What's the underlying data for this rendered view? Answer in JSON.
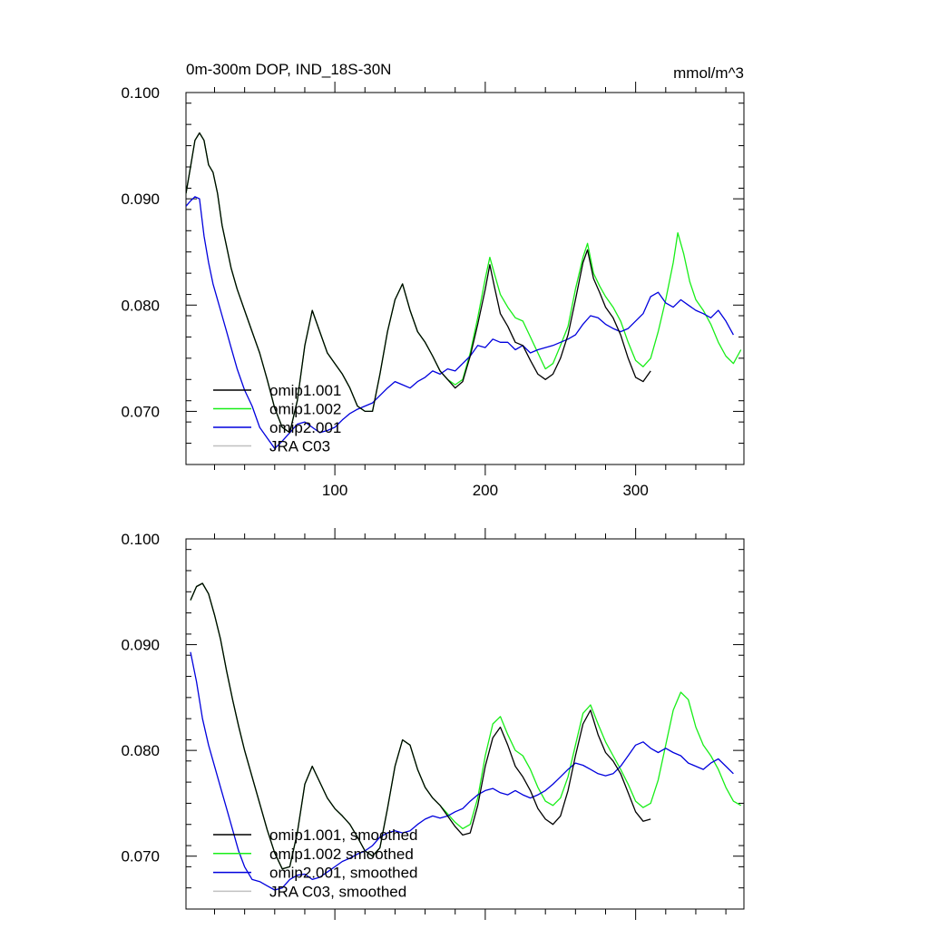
{
  "figure": {
    "title": "0m-300m DOP, IND_18S-30N",
    "units": "mmol/m^3"
  },
  "colors": {
    "omip1_001": "#000000",
    "omip1_002": "#18ee18",
    "omip2_001": "#0000dd",
    "jra_c03": "#c0c0c0"
  },
  "chart_data": [
    {
      "type": "line",
      "title": "0m-300m DOP, IND_18S-30N",
      "units": "mmol/m^3",
      "xlim": [
        1,
        372
      ],
      "ylim": [
        0.065,
        0.1
      ],
      "x_major_ticks": [
        100,
        200,
        300
      ],
      "x_tick_labels": [
        "100",
        "200",
        "300"
      ],
      "y_major_ticks": [
        0.07,
        0.08,
        0.09,
        0.1
      ],
      "y_tick_labels": [
        "0.070",
        "0.080",
        "0.090",
        "0.100"
      ],
      "legend_position": "bottom-left",
      "series": [
        {
          "name": "omip1.001",
          "color": "#000000",
          "x": [
            1,
            4,
            7,
            10,
            13,
            16,
            19,
            22,
            25,
            28,
            31,
            35,
            40,
            45,
            50,
            55,
            60,
            65,
            70,
            75,
            80,
            85,
            90,
            95,
            100,
            105,
            110,
            115,
            120,
            125,
            130,
            135,
            140,
            145,
            150,
            155,
            160,
            165,
            170,
            175,
            180,
            185,
            190,
            195,
            200,
            203,
            206,
            210,
            215,
            220,
            225,
            230,
            235,
            240,
            245,
            250,
            255,
            260,
            265,
            268,
            272,
            276,
            280,
            285,
            290,
            295,
            300,
            305,
            310
          ],
          "values": [
            0.0905,
            0.093,
            0.0955,
            0.0962,
            0.0955,
            0.0932,
            0.0925,
            0.0905,
            0.0875,
            0.0855,
            0.0835,
            0.0815,
            0.0795,
            0.0775,
            0.0755,
            0.073,
            0.0703,
            0.0685,
            0.068,
            0.071,
            0.0762,
            0.0795,
            0.0775,
            0.0755,
            0.0745,
            0.0735,
            0.0722,
            0.0705,
            0.07,
            0.07,
            0.0735,
            0.0775,
            0.0805,
            0.082,
            0.0795,
            0.0775,
            0.0765,
            0.0752,
            0.0738,
            0.073,
            0.0722,
            0.0728,
            0.0752,
            0.0782,
            0.0815,
            0.0838,
            0.0818,
            0.0792,
            0.078,
            0.0765,
            0.0762,
            0.0748,
            0.0735,
            0.073,
            0.0735,
            0.075,
            0.0772,
            0.0805,
            0.084,
            0.0852,
            0.0825,
            0.0812,
            0.0798,
            0.0788,
            0.0772,
            0.075,
            0.0732,
            0.0728,
            0.0738
          ]
        },
        {
          "name": "omip1.002",
          "color": "#18ee18",
          "x": [
            1,
            4,
            7,
            10,
            13,
            16,
            19,
            22,
            25,
            28,
            31,
            35,
            40,
            45,
            50,
            55,
            60,
            65,
            70,
            75,
            80,
            85,
            90,
            95,
            100,
            105,
            110,
            115,
            120,
            125,
            130,
            135,
            140,
            145,
            150,
            155,
            160,
            165,
            170,
            175,
            180,
            185,
            190,
            195,
            200,
            203,
            206,
            210,
            215,
            220,
            225,
            230,
            235,
            240,
            245,
            250,
            255,
            260,
            265,
            268,
            272,
            276,
            280,
            285,
            290,
            295,
            300,
            305,
            310,
            315,
            320,
            325,
            328,
            332,
            336,
            340,
            345,
            350,
            355,
            360,
            365,
            370
          ],
          "values": [
            0.0905,
            0.093,
            0.0955,
            0.0962,
            0.0955,
            0.0932,
            0.0925,
            0.0905,
            0.0875,
            0.0855,
            0.0835,
            0.0815,
            0.0795,
            0.0775,
            0.0755,
            0.073,
            0.0703,
            0.0685,
            0.068,
            0.071,
            0.0762,
            0.0795,
            0.0775,
            0.0755,
            0.0745,
            0.0735,
            0.0722,
            0.0705,
            0.07,
            0.07,
            0.0735,
            0.0775,
            0.0805,
            0.082,
            0.0795,
            0.0775,
            0.0765,
            0.0752,
            0.0738,
            0.073,
            0.0725,
            0.073,
            0.0755,
            0.0788,
            0.0825,
            0.0845,
            0.083,
            0.081,
            0.0798,
            0.0788,
            0.0785,
            0.077,
            0.0755,
            0.074,
            0.0745,
            0.0762,
            0.078,
            0.0815,
            0.0845,
            0.0858,
            0.083,
            0.0818,
            0.0808,
            0.0798,
            0.0785,
            0.0765,
            0.0748,
            0.0742,
            0.075,
            0.0775,
            0.0805,
            0.084,
            0.0868,
            0.0848,
            0.0822,
            0.0805,
            0.0795,
            0.0782,
            0.0765,
            0.0752,
            0.0745,
            0.0758
          ]
        },
        {
          "name": "omip2.001",
          "color": "#0000dd",
          "x": [
            1,
            4,
            7,
            10,
            13,
            16,
            19,
            22,
            25,
            28,
            31,
            35,
            40,
            45,
            50,
            55,
            60,
            65,
            70,
            75,
            80,
            85,
            90,
            95,
            100,
            105,
            110,
            115,
            120,
            125,
            130,
            135,
            140,
            145,
            150,
            155,
            160,
            165,
            170,
            175,
            180,
            185,
            190,
            195,
            200,
            205,
            210,
            215,
            220,
            225,
            230,
            235,
            240,
            245,
            250,
            255,
            260,
            265,
            270,
            275,
            280,
            285,
            290,
            295,
            300,
            305,
            310,
            315,
            320,
            325,
            330,
            335,
            340,
            345,
            350,
            355,
            360,
            365
          ],
          "values": [
            0.0893,
            0.0898,
            0.0902,
            0.09,
            0.0865,
            0.084,
            0.082,
            0.0805,
            0.079,
            0.0775,
            0.076,
            0.074,
            0.072,
            0.0705,
            0.0685,
            0.0675,
            0.0665,
            0.0672,
            0.068,
            0.0688,
            0.069,
            0.0685,
            0.068,
            0.0682,
            0.0685,
            0.0692,
            0.0698,
            0.0702,
            0.0705,
            0.0708,
            0.0715,
            0.0722,
            0.0728,
            0.0725,
            0.0722,
            0.0728,
            0.0732,
            0.0738,
            0.0735,
            0.074,
            0.0738,
            0.0745,
            0.0752,
            0.0762,
            0.076,
            0.0768,
            0.0765,
            0.0765,
            0.0758,
            0.0762,
            0.0755,
            0.0758,
            0.076,
            0.0762,
            0.0765,
            0.0768,
            0.0772,
            0.0782,
            0.079,
            0.0788,
            0.0782,
            0.0778,
            0.0775,
            0.0778,
            0.0785,
            0.0792,
            0.0808,
            0.0812,
            0.0802,
            0.0798,
            0.0805,
            0.08,
            0.0795,
            0.0792,
            0.0788,
            0.0795,
            0.0785,
            0.0772
          ]
        },
        {
          "name": "JRA C03",
          "color": "#c0c0c0",
          "x": [],
          "values": []
        }
      ]
    },
    {
      "type": "line",
      "title": "",
      "xlim": [
        1,
        372
      ],
      "ylim": [
        0.065,
        0.1
      ],
      "x_major_ticks": [
        100,
        200,
        300
      ],
      "x_tick_labels": [
        "",
        "",
        ""
      ],
      "y_major_ticks": [
        0.07,
        0.08,
        0.09,
        0.1
      ],
      "y_tick_labels": [
        "0.070",
        "0.080",
        "0.090",
        "0.100"
      ],
      "legend_position": "bottom-left",
      "series": [
        {
          "name": "omip1.001, smoothed",
          "color": "#000000",
          "x": [
            4,
            8,
            12,
            16,
            20,
            24,
            28,
            32,
            36,
            40,
            45,
            50,
            55,
            60,
            65,
            70,
            75,
            80,
            85,
            90,
            95,
            100,
            105,
            110,
            115,
            120,
            125,
            130,
            135,
            140,
            145,
            150,
            155,
            160,
            165,
            170,
            175,
            180,
            185,
            190,
            195,
            200,
            205,
            210,
            215,
            220,
            225,
            230,
            235,
            240,
            245,
            250,
            255,
            260,
            265,
            270,
            275,
            280,
            285,
            290,
            295,
            300,
            305,
            310
          ],
          "values": [
            0.0942,
            0.0955,
            0.0958,
            0.0948,
            0.0928,
            0.0905,
            0.0875,
            0.0848,
            0.0823,
            0.08,
            0.0775,
            0.075,
            0.0725,
            0.0703,
            0.0688,
            0.069,
            0.0722,
            0.0768,
            0.0785,
            0.077,
            0.0755,
            0.0745,
            0.0738,
            0.073,
            0.0718,
            0.0705,
            0.07,
            0.0708,
            0.0745,
            0.0785,
            0.081,
            0.0805,
            0.0782,
            0.0765,
            0.0755,
            0.0748,
            0.0738,
            0.0728,
            0.072,
            0.0722,
            0.0748,
            0.0785,
            0.0812,
            0.0822,
            0.0805,
            0.0785,
            0.0775,
            0.0762,
            0.0745,
            0.0735,
            0.073,
            0.0738,
            0.0762,
            0.0795,
            0.0825,
            0.0838,
            0.0815,
            0.0798,
            0.079,
            0.0778,
            0.076,
            0.0742,
            0.0733,
            0.0735
          ]
        },
        {
          "name": "omip1.002 smoothed",
          "color": "#18ee18",
          "x": [
            4,
            8,
            12,
            16,
            20,
            24,
            28,
            32,
            36,
            40,
            45,
            50,
            55,
            60,
            65,
            70,
            75,
            80,
            85,
            90,
            95,
            100,
            105,
            110,
            115,
            120,
            125,
            130,
            135,
            140,
            145,
            150,
            155,
            160,
            165,
            170,
            175,
            180,
            185,
            190,
            195,
            200,
            205,
            210,
            215,
            220,
            225,
            230,
            235,
            240,
            245,
            250,
            255,
            260,
            265,
            270,
            275,
            280,
            285,
            290,
            295,
            300,
            305,
            310,
            315,
            320,
            325,
            330,
            335,
            340,
            345,
            350,
            355,
            360,
            365,
            370
          ],
          "values": [
            0.0942,
            0.0955,
            0.0958,
            0.0948,
            0.0928,
            0.0905,
            0.0875,
            0.0848,
            0.0823,
            0.08,
            0.0775,
            0.075,
            0.0725,
            0.0703,
            0.0688,
            0.069,
            0.0722,
            0.0768,
            0.0785,
            0.077,
            0.0755,
            0.0745,
            0.0738,
            0.073,
            0.0718,
            0.0705,
            0.07,
            0.0708,
            0.0745,
            0.0785,
            0.081,
            0.0805,
            0.0782,
            0.0765,
            0.0755,
            0.0748,
            0.074,
            0.0732,
            0.0726,
            0.073,
            0.0755,
            0.0795,
            0.0825,
            0.0832,
            0.0815,
            0.08,
            0.0795,
            0.0782,
            0.0765,
            0.0752,
            0.0748,
            0.0755,
            0.0775,
            0.0805,
            0.0835,
            0.0843,
            0.0825,
            0.0808,
            0.0795,
            0.0782,
            0.0768,
            0.0752,
            0.0746,
            0.075,
            0.0772,
            0.0805,
            0.0838,
            0.0855,
            0.0848,
            0.0822,
            0.0805,
            0.0795,
            0.0782,
            0.0765,
            0.0752,
            0.0748
          ]
        },
        {
          "name": "omip2.001, smoothed",
          "color": "#0000dd",
          "x": [
            4,
            8,
            12,
            16,
            20,
            24,
            28,
            32,
            36,
            40,
            45,
            50,
            55,
            60,
            65,
            70,
            75,
            80,
            85,
            90,
            95,
            100,
            105,
            110,
            115,
            120,
            125,
            130,
            135,
            140,
            145,
            150,
            155,
            160,
            165,
            170,
            175,
            180,
            185,
            190,
            195,
            200,
            205,
            210,
            215,
            220,
            225,
            230,
            235,
            240,
            245,
            250,
            255,
            260,
            265,
            270,
            275,
            280,
            285,
            290,
            295,
            300,
            305,
            310,
            315,
            320,
            325,
            330,
            335,
            340,
            345,
            350,
            355,
            360,
            365
          ],
          "values": [
            0.0893,
            0.0865,
            0.083,
            0.0805,
            0.0785,
            0.0765,
            0.0745,
            0.0725,
            0.0705,
            0.069,
            0.0678,
            0.0676,
            0.0672,
            0.0668,
            0.067,
            0.0678,
            0.0682,
            0.0683,
            0.0678,
            0.068,
            0.0685,
            0.069,
            0.0695,
            0.0698,
            0.0702,
            0.0705,
            0.071,
            0.0718,
            0.0722,
            0.0724,
            0.0722,
            0.0724,
            0.073,
            0.0735,
            0.0738,
            0.0736,
            0.0738,
            0.0742,
            0.0745,
            0.0752,
            0.0758,
            0.0762,
            0.0764,
            0.076,
            0.0758,
            0.0762,
            0.0758,
            0.0755,
            0.0758,
            0.0762,
            0.0768,
            0.0775,
            0.0782,
            0.0788,
            0.0786,
            0.0782,
            0.0778,
            0.0776,
            0.0778,
            0.0785,
            0.0795,
            0.0805,
            0.0808,
            0.0802,
            0.0798,
            0.0802,
            0.0798,
            0.0795,
            0.0788,
            0.0785,
            0.0782,
            0.0788,
            0.0792,
            0.0785,
            0.0778
          ]
        },
        {
          "name": "JRA C03, smoothed",
          "color": "#c0c0c0",
          "x": [],
          "values": []
        }
      ]
    }
  ]
}
